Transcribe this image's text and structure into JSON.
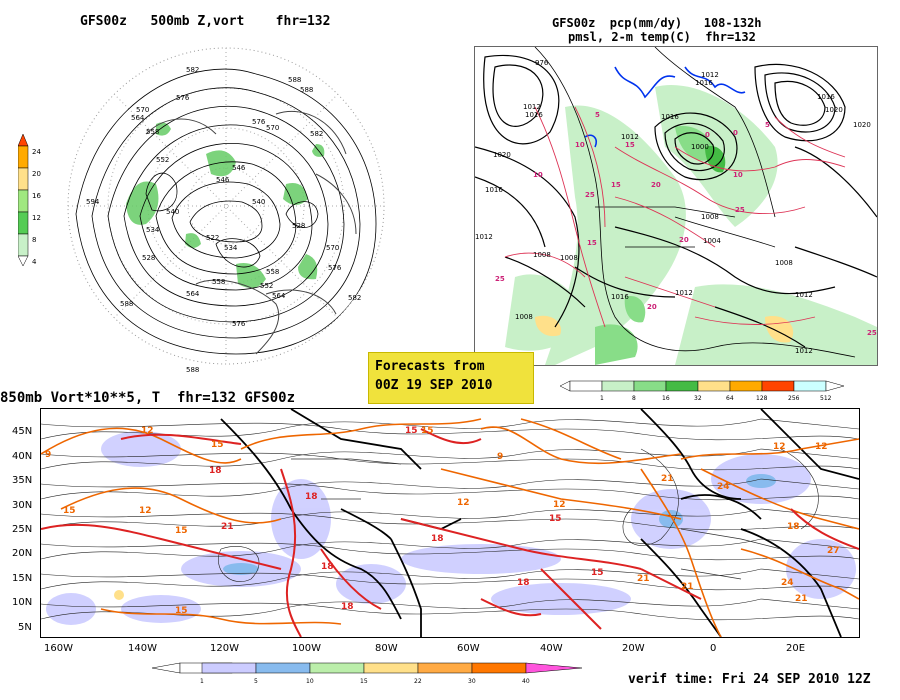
{
  "panel_500mb": {
    "title": "GFS00z   500mb Z,vort    fhr=132",
    "contour_labels": [
      "582",
      "588",
      "576",
      "570",
      "564",
      "558",
      "552",
      "546",
      "540",
      "534",
      "528",
      "522",
      "576",
      "570",
      "582",
      "588",
      "564",
      "558",
      "540",
      "534",
      "558",
      "546",
      "552",
      "528",
      "564",
      "570",
      "576",
      "582",
      "588",
      "594",
      "588",
      "576"
    ],
    "colorbar": {
      "colors": [
        "#ff4400",
        "#ffaa00",
        "#ffe08a",
        "#a0e880",
        "#55cc55",
        "#c8f0c8"
      ],
      "labels": [
        "24",
        "20",
        "16",
        "12",
        "8",
        "4"
      ]
    }
  },
  "panel_pcp": {
    "title_line1": "GFS00z  pcp(mm/dy)   108-132h",
    "title_line2": "pmsl, 2-m temp(C)  fhr=132",
    "pressure_labels": [
      "976",
      "1012",
      "1016",
      "1020",
      "1016",
      "1012",
      "1008",
      "1008",
      "1016",
      "1012",
      "1020",
      "1016",
      "1016",
      "1012",
      "1020",
      "1000",
      "1008",
      "1004",
      "1012"
    ],
    "temp_labels": [
      "5",
      "10",
      "15",
      "20",
      "25",
      "25",
      "10",
      "15",
      "20",
      "25",
      "0",
      "0",
      "5",
      "10",
      "15",
      "20",
      "25"
    ],
    "colorbar": {
      "colors": [
        "#ffffff",
        "#c8f0c8",
        "#88dd88",
        "#44bb44",
        "#ffe08a",
        "#ffaa00",
        "#ff4400",
        "#ccffff"
      ],
      "labels": [
        "1",
        "8",
        "16",
        "32",
        "64",
        "128",
        "256",
        "512"
      ]
    }
  },
  "forecast_box": {
    "line1": "Forecasts from",
    "line2": "00Z 19 SEP 2010"
  },
  "panel_850mb": {
    "title": "850mb Vort*10**5, T  fhr=132 GFS00z",
    "lat_labels": [
      "45N",
      "40N",
      "35N",
      "30N",
      "25N",
      "20N",
      "15N",
      "10N",
      "5N"
    ],
    "lon_labels": [
      "160W",
      "140W",
      "120W",
      "100W",
      "80W",
      "60W",
      "40W",
      "20W",
      "0",
      "20E"
    ],
    "temp_labels": [
      "9",
      "12",
      "15",
      "18",
      "15",
      "21",
      "18",
      "12",
      "15",
      "18",
      "15",
      "12",
      "9",
      "15",
      "18",
      "21",
      "24",
      "18",
      "21",
      "12",
      "15",
      "18",
      "12",
      "15",
      "18",
      "21",
      "24",
      "27",
      "12",
      "15",
      "21"
    ],
    "colorbar": {
      "colors": [
        "#ffffff",
        "#ccccff",
        "#88bbee",
        "#bbeeaa",
        "#ffe08a",
        "#ffaa44",
        "#ff7700",
        "#ff55dd"
      ],
      "labels": [
        "1",
        "5",
        "10",
        "15",
        "22",
        "30",
        "40"
      ]
    }
  },
  "verif_time": "verif time: Fri 24 SEP 2010 12Z"
}
